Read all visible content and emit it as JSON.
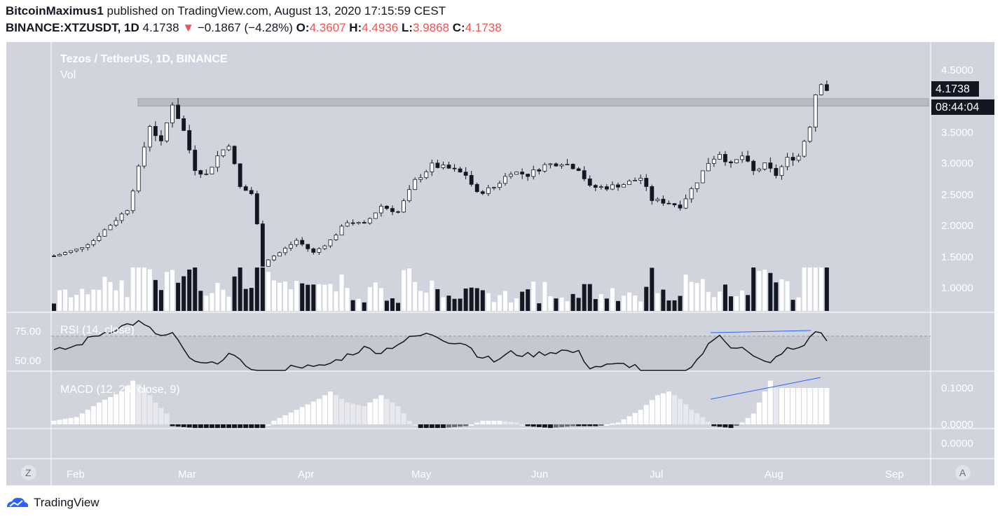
{
  "header": {
    "author": "BitcoinMaximus1",
    "published_text": "published on TradingView.com, August 13, 2020 17:15:59 CEST",
    "symbol": "BINANCE:XTZUSDT, 1D",
    "last": "4.1738",
    "change": "−0.1867 (−4.28%)",
    "o_label": "O:",
    "o_value": "4.3607",
    "h_label": "H:",
    "h_value": "4.4936",
    "l_label": "L:",
    "l_value": "3.9868",
    "c_label": "C:",
    "c_value": "4.1738"
  },
  "legend": {
    "title": "Tezos / TetherUS, 1D, BINANCE",
    "vol": "Vol",
    "rsi": "RSI (14, close)",
    "macd": "MACD (12, 26, close, 9)"
  },
  "price_label": "4.1738",
  "countdown_label": "08:44:04",
  "price_ticks": [
    "4.5000",
    "3.5000",
    "3.0000",
    "2.5000",
    "2.0000",
    "1.5000",
    "1.0000"
  ],
  "rsi_ticks": [
    "75.00",
    "50.00"
  ],
  "macd_ticks": [
    "0.1000",
    "0.0000"
  ],
  "extra_tick": "0.0000",
  "month_labels": [
    "Feb",
    "Mar",
    "Apr",
    "May",
    "Jun",
    "Jul",
    "Aug",
    "Sep"
  ],
  "scale_buttons": {
    "left": "Z",
    "right": "A"
  },
  "footer": {
    "brand": "TradingView"
  },
  "colors": {
    "pane": "#d1d4dc",
    "up": "#ffffff",
    "down": "#131722",
    "zone": "#b2b5be",
    "trendline": "#2962ff",
    "down_arrow": "#ef5350"
  },
  "chart_data": {
    "type": "candlestick",
    "title": "Tezos / TetherUS, 1D, BINANCE",
    "x_axis": [
      "Feb",
      "Mar",
      "Apr",
      "May",
      "Jun",
      "Jul",
      "Aug",
      "Sep"
    ],
    "price_range": [
      0.8,
      4.7
    ],
    "resistance_zone": [
      3.9,
      4.02
    ],
    "price_path": [
      [
        1,
        1.5
      ],
      [
        5,
        1.6
      ],
      [
        8,
        1.75
      ],
      [
        11,
        2.0
      ],
      [
        14,
        2.25
      ],
      [
        16,
        2.9
      ],
      [
        18,
        3.6
      ],
      [
        20,
        3.3
      ],
      [
        22,
        3.95
      ],
      [
        24,
        3.5
      ],
      [
        26,
        2.9
      ],
      [
        28,
        2.8
      ],
      [
        30,
        3.1
      ],
      [
        32,
        3.3
      ],
      [
        34,
        2.6
      ],
      [
        36,
        2.5
      ],
      [
        37,
        2.0
      ],
      [
        38,
        1.35
      ],
      [
        39,
        1.45
      ],
      [
        41,
        1.55
      ],
      [
        44,
        1.75
      ],
      [
        47,
        1.55
      ],
      [
        50,
        1.75
      ],
      [
        53,
        2.05
      ],
      [
        56,
        2.0
      ],
      [
        59,
        2.3
      ],
      [
        62,
        2.2
      ],
      [
        65,
        2.7
      ],
      [
        68,
        2.95
      ],
      [
        71,
        2.9
      ],
      [
        74,
        2.8
      ],
      [
        76,
        2.5
      ],
      [
        79,
        2.6
      ],
      [
        82,
        2.85
      ],
      [
        85,
        2.8
      ],
      [
        88,
        2.95
      ],
      [
        91,
        3.0
      ],
      [
        94,
        2.9
      ],
      [
        96,
        2.6
      ],
      [
        99,
        2.6
      ],
      [
        102,
        2.65
      ],
      [
        105,
        2.75
      ],
      [
        107,
        2.4
      ],
      [
        110,
        2.35
      ],
      [
        112,
        2.3
      ],
      [
        115,
        2.7
      ],
      [
        117,
        3.0
      ],
      [
        119,
        3.15
      ],
      [
        121,
        2.95
      ],
      [
        123,
        3.1
      ],
      [
        125,
        2.85
      ],
      [
        127,
        2.95
      ],
      [
        129,
        2.8
      ],
      [
        131,
        3.05
      ],
      [
        133,
        3.1
      ],
      [
        135,
        3.6
      ],
      [
        136,
        4.1
      ],
      [
        137,
        4.3
      ],
      [
        138,
        4.17
      ]
    ],
    "rsi_range": [
      40,
      85
    ],
    "rsi_path": [
      [
        1,
        57
      ],
      [
        5,
        62
      ],
      [
        8,
        70
      ],
      [
        11,
        75
      ],
      [
        14,
        80
      ],
      [
        16,
        82
      ],
      [
        18,
        76
      ],
      [
        20,
        70
      ],
      [
        22,
        72
      ],
      [
        24,
        58
      ],
      [
        26,
        47
      ],
      [
        29,
        46
      ],
      [
        32,
        55
      ],
      [
        34,
        48
      ],
      [
        36,
        44
      ],
      [
        38,
        30
      ],
      [
        41,
        40
      ],
      [
        44,
        46
      ],
      [
        47,
        43
      ],
      [
        50,
        47
      ],
      [
        53,
        54
      ],
      [
        56,
        60
      ],
      [
        59,
        57
      ],
      [
        62,
        64
      ],
      [
        65,
        70
      ],
      [
        68,
        72
      ],
      [
        71,
        66
      ],
      [
        74,
        64
      ],
      [
        76,
        55
      ],
      [
        79,
        49
      ],
      [
        82,
        56
      ],
      [
        85,
        54
      ],
      [
        88,
        56
      ],
      [
        91,
        58
      ],
      [
        94,
        56
      ],
      [
        96,
        44
      ],
      [
        99,
        45
      ],
      [
        102,
        46
      ],
      [
        104,
        45
      ],
      [
        106,
        35
      ],
      [
        109,
        32
      ],
      [
        112,
        34
      ],
      [
        115,
        50
      ],
      [
        117,
        62
      ],
      [
        119,
        72
      ],
      [
        121,
        62
      ],
      [
        123,
        60
      ],
      [
        125,
        52
      ],
      [
        127,
        48
      ],
      [
        129,
        51
      ],
      [
        131,
        59
      ],
      [
        133,
        60
      ],
      [
        135,
        68
      ],
      [
        136,
        75
      ],
      [
        137,
        72
      ],
      [
        138,
        66
      ]
    ],
    "macd_range": [
      -0.02,
      0.14
    ],
    "macd_path": [
      [
        1,
        0.01
      ],
      [
        5,
        0.02
      ],
      [
        9,
        0.06
      ],
      [
        13,
        0.09
      ],
      [
        15,
        0.12
      ],
      [
        17,
        0.1
      ],
      [
        19,
        0.06
      ],
      [
        21,
        0.03
      ],
      [
        22,
        -0.005
      ],
      [
        26,
        -0.01
      ],
      [
        30,
        -0.01
      ],
      [
        34,
        -0.01
      ],
      [
        38,
        -0.01
      ],
      [
        40,
        0.01
      ],
      [
        44,
        0.04
      ],
      [
        48,
        0.07
      ],
      [
        50,
        0.09
      ],
      [
        53,
        0.06
      ],
      [
        56,
        0.05
      ],
      [
        59,
        0.08
      ],
      [
        62,
        0.05
      ],
      [
        64,
        0.01
      ],
      [
        66,
        -0.01
      ],
      [
        70,
        -0.01
      ],
      [
        74,
        -0.005
      ],
      [
        77,
        0.01
      ],
      [
        80,
        0.01
      ],
      [
        83,
        0.005
      ],
      [
        85,
        -0.005
      ],
      [
        89,
        -0.01
      ],
      [
        93,
        -0.005
      ],
      [
        97,
        -0.005
      ],
      [
        101,
        0.005
      ],
      [
        105,
        0.04
      ],
      [
        108,
        0.08
      ],
      [
        110,
        0.09
      ],
      [
        112,
        0.07
      ],
      [
        114,
        0.04
      ],
      [
        116,
        0.02
      ],
      [
        118,
        -0.005
      ],
      [
        121,
        -0.01
      ],
      [
        123,
        0.005
      ],
      [
        125,
        0.03
      ],
      [
        126,
        0.06
      ],
      [
        127,
        0.09
      ],
      [
        128,
        0.12
      ],
      [
        129,
        0.1
      ]
    ]
  }
}
